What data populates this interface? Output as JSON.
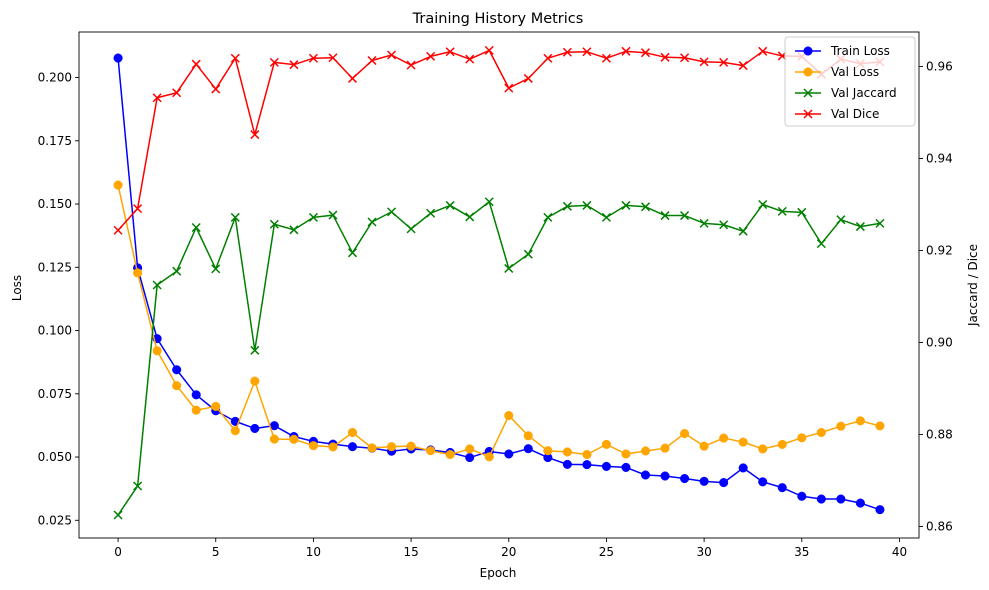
{
  "chart_data": {
    "type": "line",
    "title": "Training History Metrics",
    "xlabel": "Epoch",
    "ylabel_left": "Loss",
    "ylabel_right": "Jaccard / Dice",
    "xlim": [
      -2,
      41
    ],
    "ylim_left": [
      0.018,
      0.218
    ],
    "ylim_right": [
      0.8575,
      0.9675
    ],
    "x_ticks": [
      0,
      5,
      10,
      15,
      20,
      25,
      30,
      35,
      40
    ],
    "y_left_ticks": [
      "0.025",
      "0.050",
      "0.075",
      "0.100",
      "0.125",
      "0.150",
      "0.175",
      "0.200"
    ],
    "y_right_ticks": [
      "0.86",
      "0.88",
      "0.90",
      "0.92",
      "0.94",
      "0.96"
    ],
    "legend_position": "top-right",
    "grid": false,
    "x": [
      0,
      1,
      2,
      3,
      4,
      5,
      6,
      7,
      8,
      9,
      10,
      11,
      12,
      13,
      14,
      15,
      16,
      17,
      18,
      19,
      20,
      21,
      22,
      23,
      24,
      25,
      26,
      27,
      28,
      29,
      30,
      31,
      32,
      33,
      34,
      35,
      36,
      37,
      38,
      39
    ],
    "series": [
      {
        "name": "Train Loss",
        "axis": "left",
        "color": "#0000ff",
        "marker": "circle",
        "values": [
          0.2077,
          0.1248,
          0.0968,
          0.0845,
          0.0746,
          0.0683,
          0.0641,
          0.0613,
          0.0624,
          0.0581,
          0.0562,
          0.0551,
          0.0541,
          0.0535,
          0.0523,
          0.0532,
          0.0528,
          0.0518,
          0.0498,
          0.0522,
          0.0512,
          0.0533,
          0.0498,
          0.0471,
          0.047,
          0.0463,
          0.0459,
          0.0429,
          0.0425,
          0.0415,
          0.0404,
          0.0399,
          0.0457,
          0.0402,
          0.0379,
          0.0345,
          0.0334,
          0.0334,
          0.0318,
          0.0292
        ]
      },
      {
        "name": "Val Loss",
        "axis": "left",
        "color": "#ffa500",
        "marker": "circle",
        "values": [
          0.1575,
          0.1228,
          0.092,
          0.0782,
          0.0685,
          0.07,
          0.0604,
          0.08,
          0.0571,
          0.057,
          0.0545,
          0.054,
          0.0597,
          0.0536,
          0.0541,
          0.0543,
          0.0525,
          0.051,
          0.0532,
          0.0501,
          0.0664,
          0.0584,
          0.0525,
          0.052,
          0.051,
          0.055,
          0.0512,
          0.0524,
          0.0535,
          0.0593,
          0.0543,
          0.0575,
          0.0559,
          0.0532,
          0.055,
          0.0576,
          0.0597,
          0.0622,
          0.0643,
          0.0623
        ]
      },
      {
        "name": "Val Jaccard",
        "axis": "right",
        "color": "#008000",
        "marker": "x",
        "values": [
          0.8625,
          0.8688,
          0.9125,
          0.9155,
          0.925,
          0.916,
          0.9272,
          0.8983,
          0.9257,
          0.9245,
          0.9272,
          0.9277,
          0.9195,
          0.9262,
          0.9284,
          0.9247,
          0.9281,
          0.9298,
          0.9273,
          0.9306,
          0.9161,
          0.9192,
          0.9272,
          0.9296,
          0.9298,
          0.9272,
          0.9298,
          0.9295,
          0.9276,
          0.9276,
          0.9259,
          0.9256,
          0.9242,
          0.93,
          0.9285,
          0.9283,
          0.9215,
          0.9267,
          0.9252,
          0.9259
        ]
      },
      {
        "name": "Val Dice",
        "axis": "right",
        "color": "#ff0000",
        "marker": "x",
        "values": [
          0.9244,
          0.9291,
          0.9532,
          0.9543,
          0.9605,
          0.9551,
          0.9618,
          0.9452,
          0.9609,
          0.9604,
          0.9618,
          0.9619,
          0.9574,
          0.9613,
          0.9625,
          0.9603,
          0.9622,
          0.9632,
          0.9616,
          0.9635,
          0.9553,
          0.9574,
          0.9618,
          0.9631,
          0.9632,
          0.9618,
          0.9633,
          0.963,
          0.962,
          0.9619,
          0.961,
          0.9609,
          0.9602,
          0.9633,
          0.9623,
          0.9622,
          0.9583,
          0.9616,
          0.9606,
          0.961
        ]
      }
    ]
  }
}
